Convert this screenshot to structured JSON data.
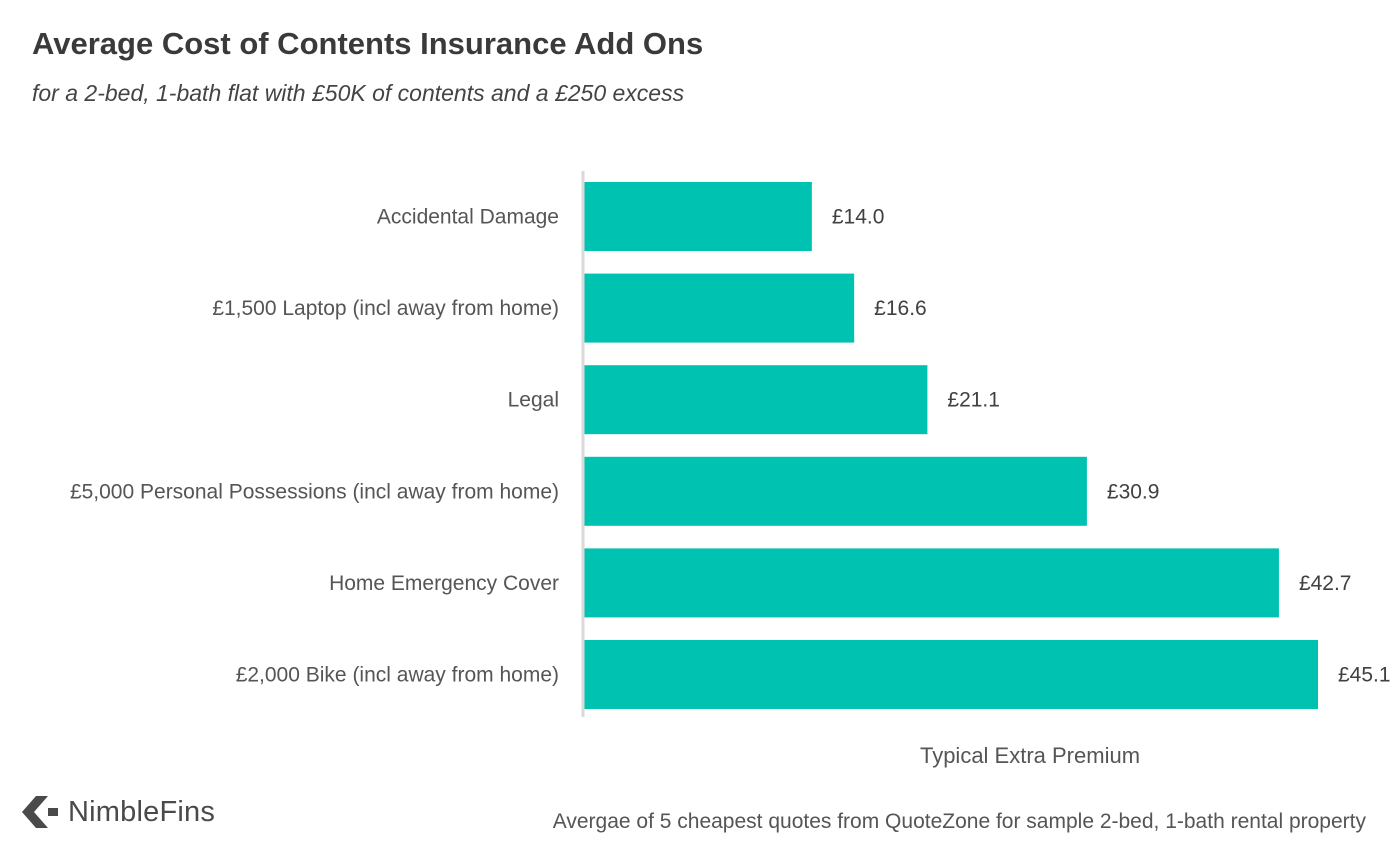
{
  "chart_data": {
    "type": "bar",
    "orientation": "horizontal",
    "title": "Average Cost of Contents Insurance Add Ons",
    "subtitle": "for a 2-bed, 1-bath flat with £50K of contents and a £250 excess",
    "categories": [
      "Accidental Damage",
      "£1,500 Laptop (incl away from home)",
      "Legal",
      "£5,000 Personal Possessions (incl away from home)",
      "Home Emergency Cover",
      "£2,000 Bike (incl away from home)"
    ],
    "values": [
      14.0,
      16.6,
      21.1,
      30.9,
      42.7,
      45.1
    ],
    "value_labels": [
      "£14.0",
      "£16.6",
      "£21.1",
      "£30.9",
      "£42.7",
      "£45.1"
    ],
    "xlabel": "Typical Extra Premium",
    "ylabel": "",
    "xlim": [
      0,
      45.1
    ],
    "grid": false,
    "bar_color": "#00c2b0",
    "axis_color": "#d9d9d9"
  },
  "logo": {
    "text": "NimbleFins",
    "icon": "chevron-left-icon",
    "color": "#4a4a4a"
  },
  "footnote": "Avergae of 5 cheapest quotes from QuoteZone for sample 2-bed, 1-bath rental property"
}
